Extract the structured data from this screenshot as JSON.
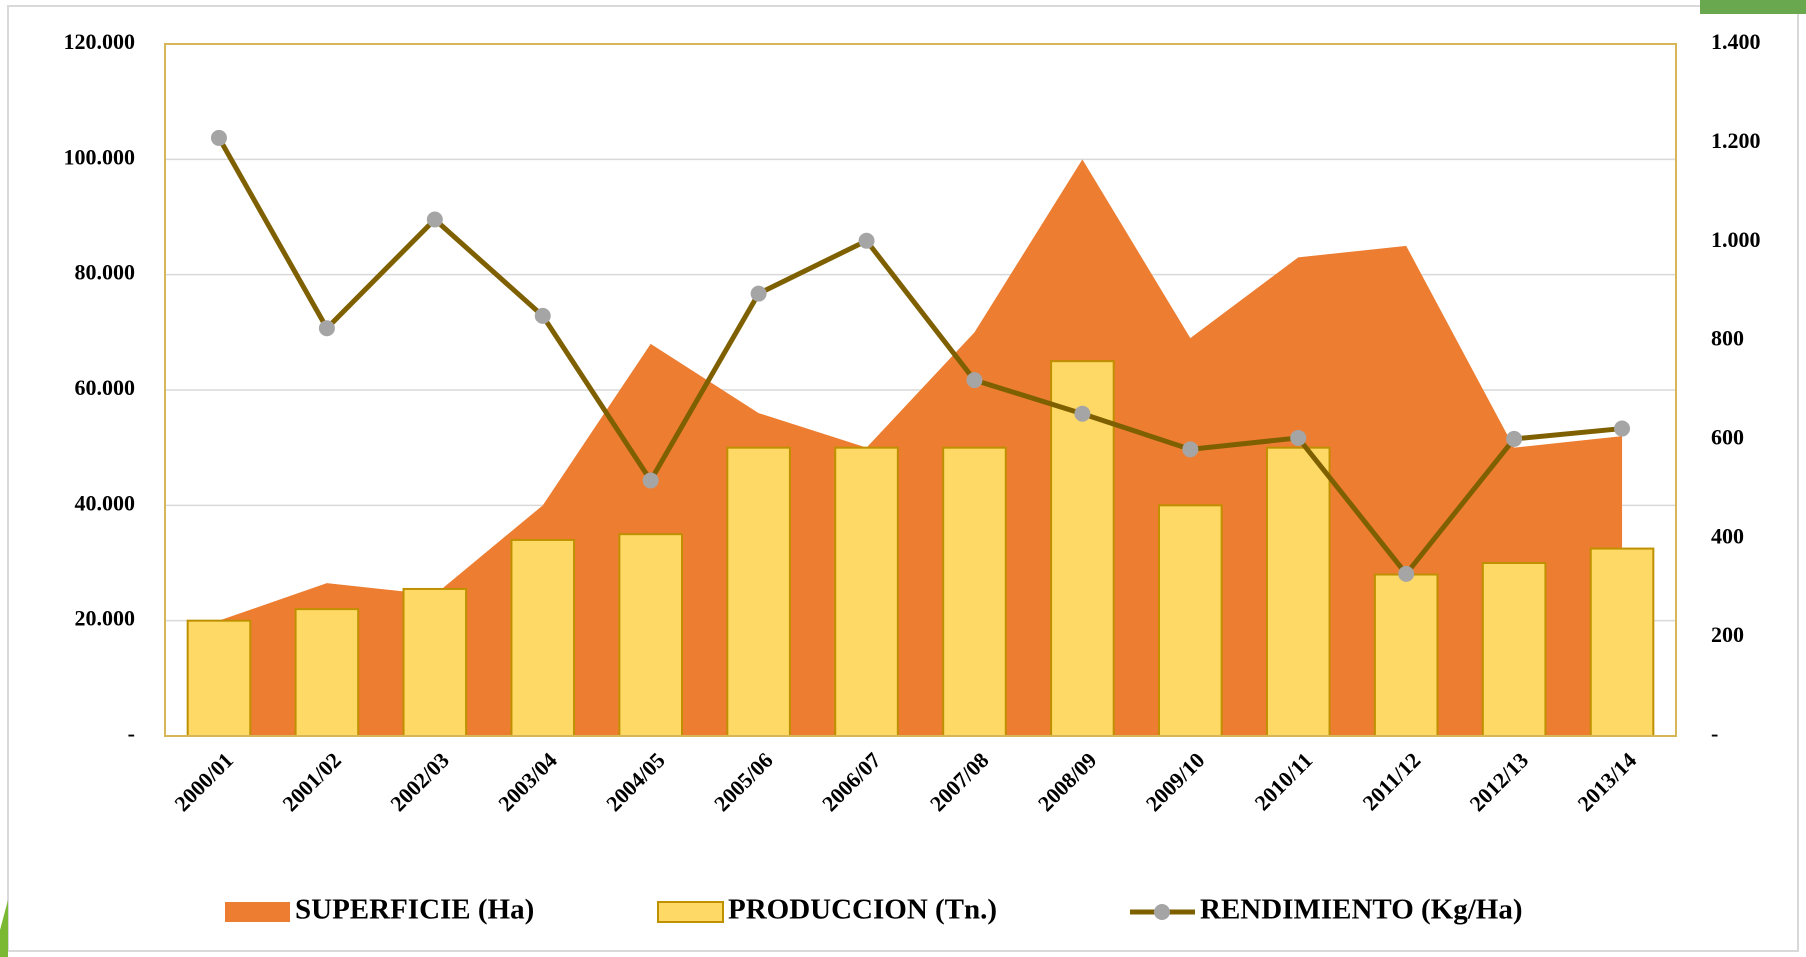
{
  "chart_data": {
    "type": "bar",
    "categories": [
      "2000/01",
      "2001/02",
      "2002/03",
      "2003/04",
      "2004/05",
      "2005/06",
      "2006/07",
      "2007/08",
      "2008/09",
      "2009/10",
      "2010/11",
      "2011/12",
      "2012/13",
      "2013/14"
    ],
    "series": [
      {
        "name": "SUPERFICIE (Ha)",
        "type": "area",
        "color": "#ed7d31",
        "values": [
          20000,
          26500,
          24500,
          40000,
          68000,
          56000,
          50000,
          70000,
          100000,
          69000,
          83000,
          85000,
          50000,
          52000
        ]
      },
      {
        "name": "PRODUCCION (Tn.)",
        "type": "bar",
        "color": "#ffd966",
        "values": [
          20000,
          22000,
          25500,
          34000,
          35000,
          50000,
          50000,
          50000,
          65000,
          40000,
          50000,
          28000,
          30000,
          32500
        ]
      },
      {
        "name": "RENDIMIENTO (Kg/Ha)",
        "type": "line",
        "color": "#7f6000",
        "axis": "y2",
        "values": [
          1210,
          825,
          1045,
          850,
          517,
          895,
          1002,
          720,
          652,
          580,
          603,
          328,
          601,
          622
        ]
      }
    ],
    "ylim": [
      0,
      120000
    ],
    "yticks": [
      {
        "value": 0,
        "label": "-"
      },
      {
        "value": 20000,
        "label": "20.000"
      },
      {
        "value": 40000,
        "label": "40.000"
      },
      {
        "value": 60000,
        "label": "60.000"
      },
      {
        "value": 80000,
        "label": "80.000"
      },
      {
        "value": 100000,
        "label": "100.000"
      },
      {
        "value": 120000,
        "label": "120.000"
      }
    ],
    "y2lim": [
      0,
      1400
    ],
    "y2ticks": [
      {
        "value": 0,
        "label": "-"
      },
      200,
      400,
      600,
      800,
      {
        "value": 1000,
        "label": "1.000"
      },
      {
        "value": 1200,
        "label": "1.200"
      },
      {
        "value": 1400,
        "label": "1.400"
      }
    ],
    "grid": true,
    "legend": "bottom"
  }
}
